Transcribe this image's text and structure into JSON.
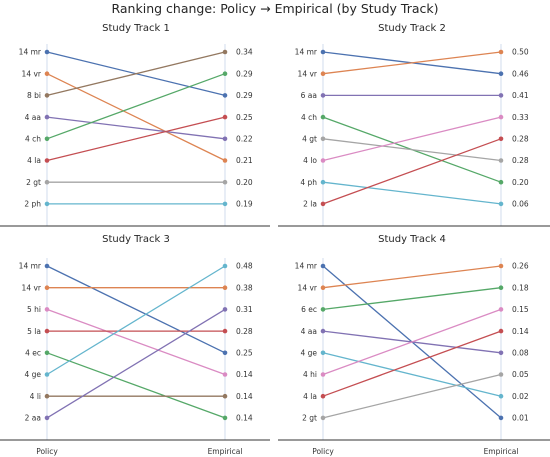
{
  "chart_data": {
    "type": "slope",
    "title": "Ranking change: Policy → Empirical (by Study Track)",
    "x_labels": [
      "Policy",
      "Empirical"
    ],
    "panels": [
      {
        "title": "Study Track 1",
        "left_labels": [
          "14 mr",
          "14 vr",
          "8 bi",
          "4 aa",
          "4 ch",
          "4 la",
          "2 gt",
          "2 ph"
        ],
        "right_labels": [
          "0.34",
          "0.29",
          "0.29",
          "0.25",
          "0.22",
          "0.21",
          "0.20",
          "0.19"
        ],
        "lines": [
          {
            "from": 0,
            "to": 2,
            "color": "#4c72b0"
          },
          {
            "from": 1,
            "to": 5,
            "color": "#dd8452"
          },
          {
            "from": 2,
            "to": 0,
            "color": "#937860"
          },
          {
            "from": 3,
            "to": 4,
            "color": "#8172b3"
          },
          {
            "from": 4,
            "to": 1,
            "color": "#55a868"
          },
          {
            "from": 5,
            "to": 3,
            "color": "#c44e52"
          },
          {
            "from": 6,
            "to": 6,
            "color": "#a5a5a5"
          },
          {
            "from": 7,
            "to": 7,
            "color": "#64b5cd"
          }
        ]
      },
      {
        "title": "Study Track 2",
        "left_labels": [
          "14 mr",
          "14 vr",
          "6 aa",
          "4 ch",
          "4 gt",
          "4 lo",
          "4 ph",
          "2 la"
        ],
        "right_labels": [
          "0.50",
          "0.46",
          "0.41",
          "0.33",
          "0.28",
          "0.28",
          "0.20",
          "0.06"
        ],
        "lines": [
          {
            "from": 0,
            "to": 1,
            "color": "#4c72b0"
          },
          {
            "from": 1,
            "to": 0,
            "color": "#dd8452"
          },
          {
            "from": 2,
            "to": 2,
            "color": "#8172b3"
          },
          {
            "from": 3,
            "to": 6,
            "color": "#55a868"
          },
          {
            "from": 4,
            "to": 5,
            "color": "#a5a5a5"
          },
          {
            "from": 5,
            "to": 3,
            "color": "#da8bc3"
          },
          {
            "from": 6,
            "to": 7,
            "color": "#64b5cd"
          },
          {
            "from": 7,
            "to": 4,
            "color": "#c44e52"
          }
        ]
      },
      {
        "title": "Study Track 3",
        "left_labels": [
          "14 mr",
          "14 vr",
          "5 hi",
          "5 la",
          "4 ec",
          "4 ge",
          "4 li",
          "2 aa"
        ],
        "right_labels": [
          "0.48",
          "0.38",
          "0.31",
          "0.28",
          "0.25",
          "0.14",
          "0.14",
          "0.14"
        ],
        "lines": [
          {
            "from": 0,
            "to": 4,
            "color": "#4c72b0"
          },
          {
            "from": 1,
            "to": 1,
            "color": "#dd8452"
          },
          {
            "from": 2,
            "to": 5,
            "color": "#da8bc3"
          },
          {
            "from": 3,
            "to": 3,
            "color": "#c44e52"
          },
          {
            "from": 4,
            "to": 7,
            "color": "#55a868"
          },
          {
            "from": 5,
            "to": 0,
            "color": "#64b5cd"
          },
          {
            "from": 6,
            "to": 6,
            "color": "#937860"
          },
          {
            "from": 7,
            "to": 2,
            "color": "#8172b3"
          }
        ]
      },
      {
        "title": "Study Track 4",
        "left_labels": [
          "14 mr",
          "14 vr",
          "6 ec",
          "4 aa",
          "4 ge",
          "4 hi",
          "4 la",
          "2 gt"
        ],
        "right_labels": [
          "0.26",
          "0.18",
          "0.15",
          "0.14",
          "0.08",
          "0.05",
          "0.02",
          "0.01"
        ],
        "lines": [
          {
            "from": 0,
            "to": 7,
            "color": "#4c72b0"
          },
          {
            "from": 1,
            "to": 0,
            "color": "#dd8452"
          },
          {
            "from": 2,
            "to": 1,
            "color": "#55a868"
          },
          {
            "from": 3,
            "to": 4,
            "color": "#8172b3"
          },
          {
            "from": 4,
            "to": 6,
            "color": "#64b5cd"
          },
          {
            "from": 5,
            "to": 2,
            "color": "#da8bc3"
          },
          {
            "from": 6,
            "to": 3,
            "color": "#c44e52"
          },
          {
            "from": 7,
            "to": 5,
            "color": "#a5a5a5"
          }
        ]
      }
    ]
  }
}
